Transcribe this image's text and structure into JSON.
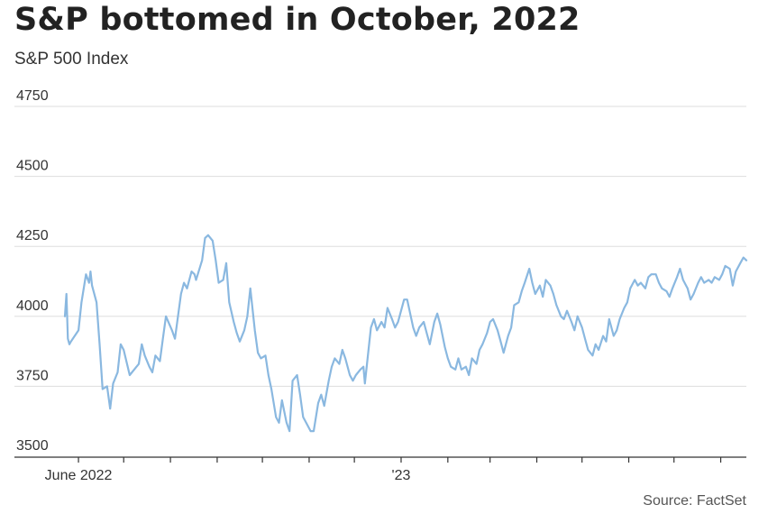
{
  "chart_data": {
    "type": "line",
    "title": "S&P bottomed in October, 2022",
    "subtitle": "S&P 500 Index",
    "source": "Source: FactSet",
    "ylim": [
      3500,
      4750
    ],
    "yticks": [
      3500,
      3750,
      4000,
      4250,
      4500,
      4750
    ],
    "x_range": [
      "2022-05-23",
      "2023-08-18"
    ],
    "xtick_labels": [
      {
        "date": "2022-06-01",
        "label": "June 2022"
      },
      {
        "date": "2023-01-01",
        "label": "'23"
      }
    ],
    "xtick_marks": [
      "2022-06-01",
      "2022-07-01",
      "2022-08-01",
      "2022-09-01",
      "2022-10-01",
      "2022-11-01",
      "2022-12-01",
      "2023-01-01",
      "2023-02-01",
      "2023-03-01",
      "2023-04-01",
      "2023-05-01",
      "2023-06-01",
      "2023-07-01",
      "2023-08-01"
    ],
    "grid": true,
    "color": "#8ab8e0",
    "series": [
      {
        "points": [
          [
            "2022-05-23",
            4000
          ],
          [
            "2022-05-24",
            4080
          ],
          [
            "2022-05-25",
            3920
          ],
          [
            "2022-05-26",
            3900
          ],
          [
            "2022-05-27",
            3910
          ],
          [
            "2022-06-01",
            3950
          ],
          [
            "2022-06-03",
            4050
          ],
          [
            "2022-06-06",
            4150
          ],
          [
            "2022-06-08",
            4120
          ],
          [
            "2022-06-09",
            4160
          ],
          [
            "2022-06-10",
            4110
          ],
          [
            "2022-06-13",
            4050
          ],
          [
            "2022-06-15",
            3900
          ],
          [
            "2022-06-17",
            3740
          ],
          [
            "2022-06-20",
            3750
          ],
          [
            "2022-06-22",
            3670
          ],
          [
            "2022-06-24",
            3760
          ],
          [
            "2022-06-27",
            3800
          ],
          [
            "2022-06-29",
            3900
          ],
          [
            "2022-07-01",
            3880
          ],
          [
            "2022-07-05",
            3790
          ],
          [
            "2022-07-08",
            3810
          ],
          [
            "2022-07-11",
            3830
          ],
          [
            "2022-07-13",
            3900
          ],
          [
            "2022-07-15",
            3860
          ],
          [
            "2022-07-18",
            3820
          ],
          [
            "2022-07-20",
            3800
          ],
          [
            "2022-07-22",
            3860
          ],
          [
            "2022-07-25",
            3840
          ],
          [
            "2022-07-27",
            3920
          ],
          [
            "2022-07-29",
            4000
          ],
          [
            "2022-08-02",
            3950
          ],
          [
            "2022-08-04",
            3920
          ],
          [
            "2022-08-08",
            4080
          ],
          [
            "2022-08-10",
            4120
          ],
          [
            "2022-08-12",
            4100
          ],
          [
            "2022-08-15",
            4160
          ],
          [
            "2022-08-17",
            4150
          ],
          [
            "2022-08-18",
            4130
          ],
          [
            "2022-08-22",
            4200
          ],
          [
            "2022-08-24",
            4280
          ],
          [
            "2022-08-26",
            4290
          ],
          [
            "2022-08-29",
            4270
          ],
          [
            "2022-08-31",
            4200
          ],
          [
            "2022-09-02",
            4120
          ],
          [
            "2022-09-05",
            4130
          ],
          [
            "2022-09-07",
            4190
          ],
          [
            "2022-09-09",
            4050
          ],
          [
            "2022-09-12",
            3980
          ],
          [
            "2022-09-14",
            3940
          ],
          [
            "2022-09-16",
            3910
          ],
          [
            "2022-09-19",
            3950
          ],
          [
            "2022-09-21",
            4000
          ],
          [
            "2022-09-23",
            4100
          ],
          [
            "2022-09-26",
            3950
          ],
          [
            "2022-09-28",
            3870
          ],
          [
            "2022-09-30",
            3850
          ],
          [
            "2022-10-03",
            3860
          ],
          [
            "2022-10-05",
            3790
          ],
          [
            "2022-10-07",
            3740
          ],
          [
            "2022-10-10",
            3640
          ],
          [
            "2022-10-12",
            3620
          ],
          [
            "2022-10-14",
            3700
          ],
          [
            "2022-10-17",
            3620
          ],
          [
            "2022-10-19",
            3590
          ],
          [
            "2022-10-21",
            3770
          ],
          [
            "2022-10-24",
            3790
          ],
          [
            "2022-10-26",
            3720
          ],
          [
            "2022-10-28",
            3640
          ],
          [
            "2022-10-31",
            3610
          ],
          [
            "2022-11-02",
            3590
          ],
          [
            "2022-11-04",
            3590
          ],
          [
            "2022-11-07",
            3690
          ],
          [
            "2022-11-09",
            3720
          ],
          [
            "2022-11-11",
            3680
          ],
          [
            "2022-11-14",
            3770
          ],
          [
            "2022-11-16",
            3820
          ],
          [
            "2022-11-18",
            3850
          ],
          [
            "2022-11-21",
            3830
          ],
          [
            "2022-11-23",
            3880
          ],
          [
            "2022-11-25",
            3850
          ],
          [
            "2022-11-28",
            3790
          ],
          [
            "2022-11-30",
            3770
          ],
          [
            "2022-12-02",
            3790
          ],
          [
            "2022-12-05",
            3810
          ],
          [
            "2022-12-07",
            3820
          ],
          [
            "2022-12-08",
            3760
          ],
          [
            "2022-12-12",
            3960
          ],
          [
            "2022-12-14",
            3990
          ],
          [
            "2022-12-16",
            3950
          ],
          [
            "2022-12-19",
            3980
          ],
          [
            "2022-12-21",
            3960
          ],
          [
            "2022-12-23",
            4030
          ],
          [
            "2022-12-26",
            3990
          ],
          [
            "2022-12-28",
            3960
          ],
          [
            "2022-12-30",
            3980
          ],
          [
            "2023-01-03",
            4060
          ],
          [
            "2023-01-05",
            4060
          ],
          [
            "2023-01-09",
            3960
          ],
          [
            "2023-01-11",
            3930
          ],
          [
            "2023-01-13",
            3960
          ],
          [
            "2023-01-16",
            3980
          ],
          [
            "2023-01-18",
            3940
          ],
          [
            "2023-01-20",
            3900
          ],
          [
            "2023-01-23",
            3980
          ],
          [
            "2023-01-25",
            4010
          ],
          [
            "2023-01-27",
            3970
          ],
          [
            "2023-01-30",
            3890
          ],
          [
            "2023-02-01",
            3850
          ],
          [
            "2023-02-03",
            3820
          ],
          [
            "2023-02-06",
            3810
          ],
          [
            "2023-02-08",
            3850
          ],
          [
            "2023-02-10",
            3810
          ],
          [
            "2023-02-13",
            3820
          ],
          [
            "2023-02-15",
            3790
          ],
          [
            "2023-02-17",
            3850
          ],
          [
            "2023-02-20",
            3830
          ],
          [
            "2023-02-22",
            3880
          ],
          [
            "2023-02-24",
            3900
          ],
          [
            "2023-02-27",
            3940
          ],
          [
            "2023-03-01",
            3980
          ],
          [
            "2023-03-03",
            3990
          ],
          [
            "2023-03-06",
            3950
          ],
          [
            "2023-03-08",
            3910
          ],
          [
            "2023-03-10",
            3870
          ],
          [
            "2023-03-13",
            3930
          ],
          [
            "2023-03-15",
            3960
          ],
          [
            "2023-03-17",
            4040
          ],
          [
            "2023-03-20",
            4050
          ],
          [
            "2023-03-22",
            4090
          ],
          [
            "2023-03-24",
            4120
          ],
          [
            "2023-03-27",
            4170
          ],
          [
            "2023-03-29",
            4120
          ],
          [
            "2023-03-31",
            4080
          ],
          [
            "2023-04-03",
            4110
          ],
          [
            "2023-04-05",
            4070
          ],
          [
            "2023-04-07",
            4130
          ],
          [
            "2023-04-10",
            4110
          ],
          [
            "2023-04-12",
            4080
          ],
          [
            "2023-04-14",
            4040
          ],
          [
            "2023-04-17",
            4000
          ],
          [
            "2023-04-19",
            3990
          ],
          [
            "2023-04-21",
            4020
          ],
          [
            "2023-04-24",
            3980
          ],
          [
            "2023-04-26",
            3950
          ],
          [
            "2023-04-28",
            4000
          ],
          [
            "2023-05-01",
            3960
          ],
          [
            "2023-05-03",
            3920
          ],
          [
            "2023-05-05",
            3880
          ],
          [
            "2023-05-08",
            3860
          ],
          [
            "2023-05-10",
            3900
          ],
          [
            "2023-05-12",
            3880
          ],
          [
            "2023-05-15",
            3930
          ],
          [
            "2023-05-17",
            3910
          ],
          [
            "2023-05-19",
            3990
          ],
          [
            "2023-05-22",
            3930
          ],
          [
            "2023-05-24",
            3950
          ],
          [
            "2023-05-26",
            3990
          ],
          [
            "2023-05-29",
            4030
          ],
          [
            "2023-05-31",
            4050
          ],
          [
            "2023-06-02",
            4100
          ],
          [
            "2023-06-05",
            4130
          ],
          [
            "2023-06-07",
            4110
          ],
          [
            "2023-06-09",
            4120
          ],
          [
            "2023-06-12",
            4100
          ],
          [
            "2023-06-14",
            4140
          ],
          [
            "2023-06-16",
            4150
          ],
          [
            "2023-06-19",
            4150
          ],
          [
            "2023-06-21",
            4120
          ],
          [
            "2023-06-23",
            4100
          ],
          [
            "2023-06-26",
            4090
          ],
          [
            "2023-06-28",
            4070
          ],
          [
            "2023-06-30",
            4100
          ],
          [
            "2023-07-03",
            4140
          ],
          [
            "2023-07-05",
            4170
          ],
          [
            "2023-07-07",
            4130
          ],
          [
            "2023-07-10",
            4100
          ],
          [
            "2023-07-12",
            4060
          ],
          [
            "2023-07-14",
            4080
          ],
          [
            "2023-07-17",
            4120
          ],
          [
            "2023-07-19",
            4140
          ],
          [
            "2023-07-21",
            4120
          ],
          [
            "2023-07-24",
            4130
          ],
          [
            "2023-07-26",
            4120
          ],
          [
            "2023-07-28",
            4140
          ],
          [
            "2023-07-31",
            4130
          ],
          [
            "2023-08-02",
            4150
          ],
          [
            "2023-08-04",
            4180
          ],
          [
            "2023-08-07",
            4170
          ],
          [
            "2023-08-09",
            4110
          ],
          [
            "2023-08-11",
            4160
          ],
          [
            "2023-08-14",
            4190
          ],
          [
            "2023-08-16",
            4210
          ],
          [
            "2023-08-18",
            4200
          ]
        ]
      }
    ]
  }
}
